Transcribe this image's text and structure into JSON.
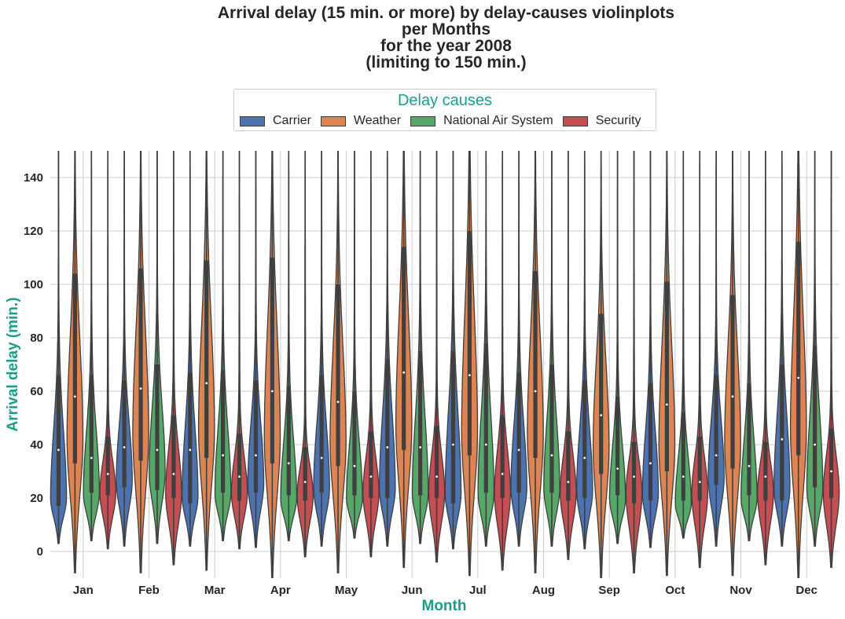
{
  "chart_data": {
    "type": "violin",
    "title_lines": [
      "Arrival delay (15 min. or more) by delay-causes violinplots",
      "per Months",
      "for the year 2008",
      "(limiting to 150 min.)"
    ],
    "xlabel": "Month",
    "ylabel": "Arrival delay (min.)",
    "ylim": [
      -10,
      150
    ],
    "yticks": [
      0,
      20,
      40,
      60,
      80,
      100,
      120,
      140
    ],
    "grid": true,
    "legend_title": "Delay causes",
    "legend_position": "top-center",
    "categories": [
      "Jan",
      "Feb",
      "Mar",
      "Apr",
      "May",
      "Jun",
      "Jul",
      "Aug",
      "Sep",
      "Oct",
      "Nov",
      "Dec"
    ],
    "series": [
      {
        "name": "Carrier",
        "color": "#4c72b0",
        "min": [
          3,
          2,
          2,
          1.5,
          2,
          2,
          1,
          2,
          1,
          1.5,
          2,
          2
        ],
        "q1": [
          17,
          24,
          18,
          22,
          22,
          20,
          18,
          22,
          20,
          19,
          25,
          19
        ],
        "median": [
          38,
          39,
          38,
          36,
          35,
          39,
          40,
          38,
          35,
          33,
          36,
          42
        ],
        "q3": [
          66,
          64,
          67,
          64,
          66,
          72,
          75,
          67,
          64,
          63,
          66,
          70
        ],
        "peak": [
          20,
          27,
          21,
          26,
          24,
          24,
          22,
          24,
          23,
          22,
          28,
          24
        ]
      },
      {
        "name": "Weather",
        "color": "#dd8452",
        "min": [
          -8,
          -8,
          -7,
          -10,
          -8,
          -6,
          -9,
          -8,
          -10,
          -9,
          -9,
          -10
        ],
        "q1": [
          33,
          34,
          35,
          33,
          32,
          38,
          36,
          35,
          29,
          30,
          31,
          36
        ],
        "median": [
          58,
          61,
          63,
          60,
          56,
          67,
          66,
          60,
          51,
          55,
          58,
          65
        ],
        "q3": [
          104,
          106,
          109,
          110,
          100,
          114,
          120,
          105,
          89,
          101,
          96,
          116
        ],
        "peak": [
          43,
          45,
          47,
          44,
          42,
          48,
          46,
          45,
          40,
          41,
          42,
          47
        ]
      },
      {
        "name": "National Air System",
        "color": "#55a868",
        "min": [
          4,
          3,
          4,
          4,
          5,
          3,
          2,
          2,
          3,
          5,
          4,
          2
        ],
        "q1": [
          22,
          23,
          22,
          21,
          21,
          21,
          22,
          22,
          21,
          19,
          21,
          24
        ],
        "median": [
          35,
          38,
          36,
          33,
          32,
          39,
          40,
          36,
          31,
          28,
          32,
          40
        ],
        "q3": [
          66,
          70,
          68,
          62,
          60,
          75,
          78,
          70,
          58,
          52,
          63,
          77
        ],
        "peak": [
          22,
          30,
          22,
          20,
          20,
          22,
          22,
          24,
          20,
          18,
          20,
          24
        ]
      },
      {
        "name": "Security",
        "color": "#c44e52",
        "min": [
          1,
          -5,
          1,
          -2,
          -2,
          -4,
          -7,
          -3,
          -8,
          -6,
          -5,
          -6
        ],
        "q1": [
          21,
          20,
          19,
          19,
          20,
          20,
          20,
          19,
          18,
          19,
          19,
          20
        ],
        "median": [
          29,
          29,
          28,
          26,
          28,
          28,
          29,
          26,
          28,
          26,
          28,
          30
        ],
        "q3": [
          43,
          51,
          44,
          39,
          45,
          47,
          51,
          45,
          41,
          43,
          41,
          46
        ],
        "peak": [
          22,
          22,
          22,
          21,
          22,
          22,
          22,
          22,
          22,
          22,
          22,
          22
        ]
      }
    ]
  }
}
